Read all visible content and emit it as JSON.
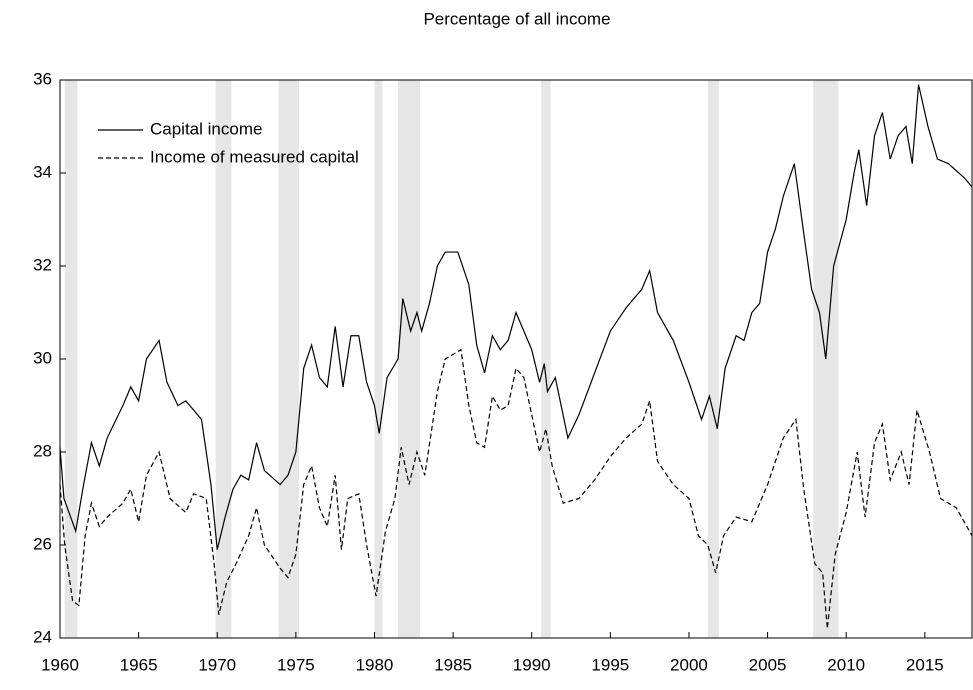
{
  "chart_data": {
    "type": "line",
    "title": "Percentage of all income",
    "xlim": [
      1960,
      2018
    ],
    "xticks": [
      1960,
      1965,
      1970,
      1975,
      1980,
      1985,
      1990,
      1995,
      2000,
      2005,
      2010,
      2015
    ],
    "ylim": [
      24,
      36
    ],
    "yticks": [
      24,
      26,
      28,
      30,
      32,
      34,
      36
    ],
    "legend": "upper left",
    "shaded_periods": [
      [
        1960.3,
        1961.1
      ],
      [
        1969.9,
        1970.9
      ],
      [
        1973.9,
        1975.2
      ],
      [
        1980.0,
        1980.5
      ],
      [
        1981.5,
        1982.9
      ],
      [
        1990.6,
        1991.2
      ],
      [
        2001.2,
        2001.9
      ],
      [
        2007.9,
        2009.5
      ]
    ],
    "shade_color": "#e6e6e6",
    "series": [
      {
        "name": "Capital income",
        "color": "#000000",
        "line_style": "solid",
        "x": [
          1960,
          1960.25,
          1961,
          1961.5,
          1962,
          1962.5,
          1963,
          1964,
          1964.5,
          1965,
          1965.5,
          1966.3,
          1966.8,
          1967.5,
          1968,
          1968.5,
          1969,
          1969.6,
          1970,
          1970.5,
          1971,
          1971.5,
          1972,
          1972.5,
          1973,
          1974,
          1974.5,
          1975,
          1975.5,
          1976,
          1976.5,
          1977,
          1977.5,
          1978,
          1978.5,
          1979,
          1979.5,
          1980,
          1980.3,
          1980.8,
          1981.5,
          1981.8,
          1982.3,
          1982.7,
          1983,
          1983.5,
          1984,
          1984.5,
          1985.3,
          1986,
          1986.5,
          1987,
          1987.5,
          1988,
          1988.5,
          1989,
          1989.5,
          1990,
          1990.5,
          1990.8,
          1991,
          1991.5,
          1992.3,
          1993,
          1994,
          1995,
          1996,
          1997,
          1997.5,
          1998,
          1999,
          2000,
          2000.8,
          2001.3,
          2001.8,
          2002.3,
          2003,
          2003.5,
          2004,
          2004.5,
          2005,
          2005.5,
          2006,
          2006.7,
          2007.3,
          2007.8,
          2008.3,
          2008.7,
          2009.2,
          2010,
          2010.5,
          2010.8,
          2011.3,
          2011.8,
          2012.3,
          2012.8,
          2013.3,
          2013.8,
          2014.2,
          2014.6,
          2015.2,
          2015.8,
          2016.5,
          2017.5,
          2018
        ],
        "values": [
          28.1,
          27.0,
          26.3,
          27.3,
          28.2,
          27.7,
          28.3,
          29.0,
          29.4,
          29.1,
          30.0,
          30.4,
          29.5,
          29.0,
          29.1,
          28.9,
          28.7,
          27.3,
          25.9,
          26.6,
          27.2,
          27.5,
          27.4,
          28.2,
          27.6,
          27.3,
          27.5,
          28.0,
          29.8,
          30.3,
          29.6,
          29.4,
          30.7,
          29.4,
          30.5,
          30.5,
          29.5,
          29.0,
          28.4,
          29.6,
          30.0,
          31.3,
          30.6,
          31.0,
          30.6,
          31.2,
          32.0,
          32.3,
          32.3,
          31.6,
          30.3,
          29.7,
          30.5,
          30.2,
          30.4,
          31.0,
          30.6,
          30.2,
          29.5,
          29.9,
          29.3,
          29.6,
          28.3,
          28.8,
          29.7,
          30.6,
          31.1,
          31.5,
          31.9,
          31.0,
          30.4,
          29.5,
          28.7,
          29.2,
          28.5,
          29.8,
          30.5,
          30.4,
          31.0,
          31.2,
          32.3,
          32.8,
          33.5,
          34.2,
          32.7,
          31.5,
          31.0,
          30.0,
          32.0,
          33.0,
          34.0,
          34.5,
          33.3,
          34.8,
          35.3,
          34.3,
          34.8,
          35.0,
          34.2,
          35.9,
          35.0,
          34.3,
          34.2,
          33.9,
          33.7
        ]
      },
      {
        "name": "Income of measured capital",
        "color": "#000000",
        "line_style": "dashed",
        "x": [
          1960,
          1960.3,
          1960.8,
          1961.2,
          1961.6,
          1962,
          1962.5,
          1963,
          1964,
          1964.5,
          1965,
          1965.5,
          1966.3,
          1967,
          1968,
          1968.5,
          1969.3,
          1969.8,
          1970.1,
          1970.6,
          1971.2,
          1972,
          1972.5,
          1973,
          1974,
          1974.5,
          1975,
          1975.5,
          1976,
          1976.5,
          1977,
          1977.5,
          1977.9,
          1978.3,
          1979,
          1979.5,
          1980.1,
          1980.7,
          1981.3,
          1981.7,
          1982.2,
          1982.7,
          1983.2,
          1984,
          1984.5,
          1985.5,
          1986,
          1986.5,
          1987,
          1987.5,
          1988,
          1988.5,
          1989,
          1989.5,
          1990,
          1990.5,
          1990.9,
          1991.3,
          1992,
          1993,
          1994,
          1995,
          1996,
          1997,
          1997.5,
          1998,
          1999,
          2000,
          2000.6,
          2001.2,
          2001.7,
          2002.2,
          2003,
          2004,
          2005,
          2006,
          2006.8,
          2007.3,
          2008,
          2008.5,
          2008.8,
          2009.3,
          2010,
          2010.7,
          2011.2,
          2011.8,
          2012.3,
          2012.8,
          2013.5,
          2014,
          2014.5,
          2015.3,
          2016,
          2017,
          2018
        ],
        "values": [
          27.3,
          26.0,
          24.8,
          24.7,
          26.2,
          26.9,
          26.4,
          26.6,
          26.9,
          27.2,
          26.5,
          27.5,
          28.0,
          27.0,
          26.7,
          27.1,
          27.0,
          25.6,
          24.5,
          25.2,
          25.6,
          26.2,
          26.8,
          26.0,
          25.5,
          25.3,
          25.8,
          27.3,
          27.7,
          26.8,
          26.4,
          27.5,
          25.9,
          27.0,
          27.1,
          26.0,
          24.9,
          26.3,
          27.0,
          28.1,
          27.3,
          28.0,
          27.5,
          29.3,
          30.0,
          30.2,
          29.0,
          28.2,
          28.1,
          29.2,
          28.9,
          29.0,
          29.8,
          29.6,
          28.8,
          28.0,
          28.5,
          27.7,
          26.9,
          27.0,
          27.4,
          27.9,
          28.3,
          28.6,
          29.1,
          27.8,
          27.3,
          27.0,
          26.2,
          26.0,
          25.4,
          26.2,
          26.6,
          26.5,
          27.3,
          28.3,
          28.7,
          27.2,
          25.6,
          25.4,
          24.2,
          25.8,
          26.7,
          28.0,
          26.6,
          28.2,
          28.6,
          27.4,
          28.0,
          27.3,
          28.9,
          28.0,
          27.0,
          26.8,
          26.2
        ]
      }
    ]
  }
}
